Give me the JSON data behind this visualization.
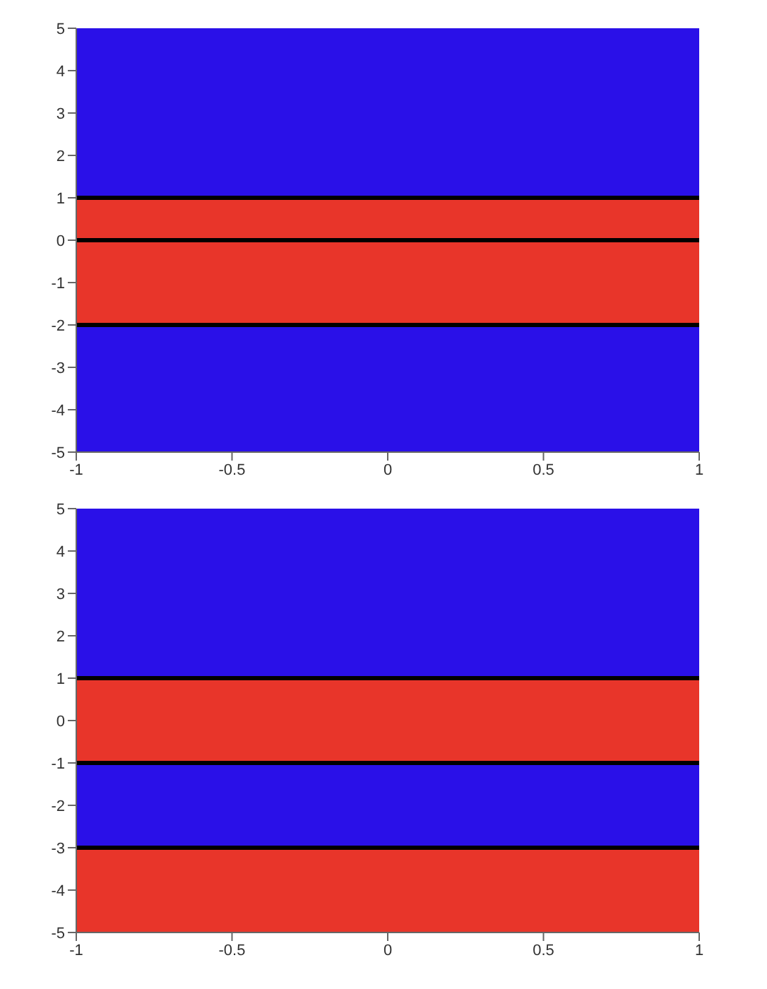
{
  "chart_data": [
    {
      "type": "line",
      "xlim": [
        -1,
        1
      ],
      "xticks": [
        -1,
        -0.5,
        0,
        0.5,
        1
      ],
      "ylim": [
        -5,
        5
      ],
      "yticks": [
        -5,
        -4,
        -3,
        -2,
        -1,
        0,
        1,
        2,
        3,
        4,
        5
      ],
      "grid": false,
      "bands": [
        {
          "axis": "y",
          "from": 1,
          "to": 5,
          "color": "#2a10e8"
        },
        {
          "axis": "y",
          "from": -2,
          "to": 1,
          "color": "#e8352a"
        },
        {
          "axis": "y",
          "from": -5,
          "to": -2,
          "color": "#2a10e8"
        }
      ],
      "ref_lines": [
        {
          "axis": "y",
          "value": 1,
          "color": "#000000"
        },
        {
          "axis": "y",
          "value": 0,
          "color": "#000000"
        },
        {
          "axis": "y",
          "value": -2,
          "color": "#000000"
        }
      ]
    },
    {
      "type": "line",
      "xlim": [
        -1,
        1
      ],
      "xticks": [
        -1,
        -0.5,
        0,
        0.5,
        1
      ],
      "ylim": [
        -5,
        5
      ],
      "yticks": [
        -5,
        -4,
        -3,
        -2,
        -1,
        0,
        1,
        2,
        3,
        4,
        5
      ],
      "grid": false,
      "bands": [
        {
          "axis": "y",
          "from": 1,
          "to": 5,
          "color": "#2a10e8"
        },
        {
          "axis": "y",
          "from": -1,
          "to": 1,
          "color": "#e8352a"
        },
        {
          "axis": "y",
          "from": -3,
          "to": -1,
          "color": "#2a10e8"
        },
        {
          "axis": "y",
          "from": -5,
          "to": -3,
          "color": "#e8352a"
        }
      ],
      "ref_lines": [
        {
          "axis": "y",
          "value": 1,
          "color": "#000000"
        },
        {
          "axis": "y",
          "value": -1,
          "color": "#000000"
        },
        {
          "axis": "y",
          "value": -3,
          "color": "#000000"
        }
      ]
    }
  ]
}
